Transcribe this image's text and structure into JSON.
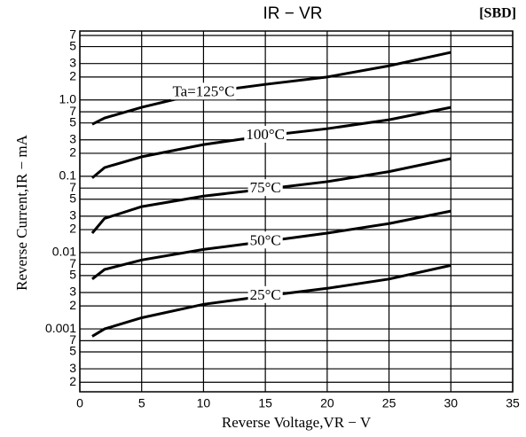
{
  "chart_data": {
    "type": "line",
    "title": "IR − VR",
    "tag": "[SBD]",
    "x_label": "Reverse Voltage,VR − V",
    "y_label": "Reverse Current,IR − mA",
    "x": [
      1,
      2,
      5,
      10,
      15,
      20,
      25,
      30
    ],
    "series": [
      {
        "name": "Ta=125°C",
        "color": "#000000",
        "values": [
          0.48,
          0.58,
          0.8,
          1.25,
          1.6,
          2.0,
          2.8,
          4.2
        ]
      },
      {
        "name": "100°C",
        "color": "#000000",
        "values": [
          0.095,
          0.13,
          0.18,
          0.26,
          0.34,
          0.42,
          0.55,
          0.8
        ]
      },
      {
        "name": "75°C",
        "color": "#000000",
        "values": [
          0.018,
          0.028,
          0.04,
          0.055,
          0.068,
          0.085,
          0.115,
          0.17
        ]
      },
      {
        "name": "50°C",
        "color": "#000000",
        "values": [
          0.0045,
          0.006,
          0.008,
          0.011,
          0.014,
          0.018,
          0.024,
          0.035
        ]
      },
      {
        "name": "25°C",
        "color": "#000000",
        "values": [
          0.0008,
          0.001,
          0.0014,
          0.0021,
          0.0027,
          0.0034,
          0.0045,
          0.0068
        ]
      }
    ],
    "xlim": [
      0,
      35
    ],
    "xticks": [
      0,
      5,
      10,
      15,
      20,
      25,
      30,
      35
    ],
    "ylim": [
      0.00015,
      8
    ],
    "log_y": true,
    "grid": true,
    "yticks": [
      7,
      5,
      3,
      2,
      {
        "value": 1,
        "label": "1.0"
      },
      {
        "value": 0.7,
        "label": "7"
      },
      {
        "value": 0.5,
        "label": "5"
      },
      {
        "value": 0.3,
        "label": "3"
      },
      {
        "value": 0.2,
        "label": "2"
      },
      0.1,
      {
        "value": 0.07,
        "label": "7"
      },
      {
        "value": 0.05,
        "label": "5"
      },
      {
        "value": 0.03,
        "label": "3"
      },
      {
        "value": 0.02,
        "label": "2"
      },
      0.01,
      {
        "value": 0.007,
        "label": "7"
      },
      {
        "value": 0.005,
        "label": "5"
      },
      {
        "value": 0.003,
        "label": "3"
      },
      {
        "value": 0.002,
        "label": "2"
      },
      0.001,
      {
        "value": 0.0007,
        "label": "7"
      },
      {
        "value": 0.0005,
        "label": "5"
      },
      {
        "value": 0.0003,
        "label": "3"
      },
      {
        "value": 0.0002,
        "label": "2"
      }
    ],
    "label_at": [
      3,
      4,
      4,
      4,
      4
    ]
  }
}
